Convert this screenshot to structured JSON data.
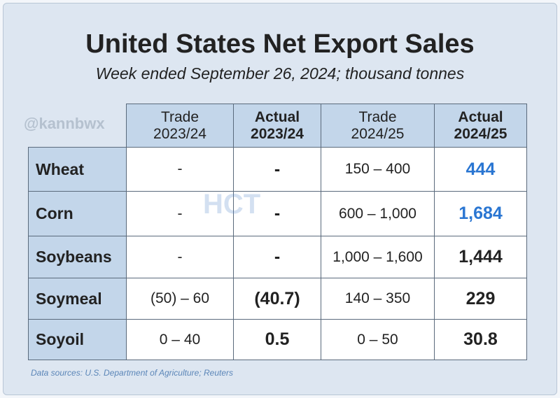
{
  "header": {
    "title": "United States Net Export Sales",
    "subtitle": "Week ended September 26, 2024; thousand tonnes",
    "handle": "@kannbwx",
    "logo": "HCT"
  },
  "table": {
    "columns": [
      [
        "Trade",
        "2023/24"
      ],
      [
        "Actual",
        "2023/24"
      ],
      [
        "Trade",
        "2024/25"
      ],
      [
        "Actual",
        "2024/25"
      ]
    ],
    "rows": [
      [
        "Wheat",
        "-",
        "-",
        "150 – 400",
        "444"
      ],
      [
        "Corn",
        "-",
        "-",
        "600 – 1,000",
        "1,684"
      ],
      [
        "Soybeans",
        "-",
        "-",
        "1,000 – 1,600",
        "1,444"
      ],
      [
        "Soymeal",
        "(50) – 60",
        "(40.7)",
        "140 – 350",
        "229"
      ],
      [
        "Soyoil",
        "0 – 40",
        "0.5",
        "0 – 50",
        "30.8"
      ]
    ]
  },
  "footer": {
    "source": "Data sources: U.S. Department of Agriculture; Reuters"
  }
}
